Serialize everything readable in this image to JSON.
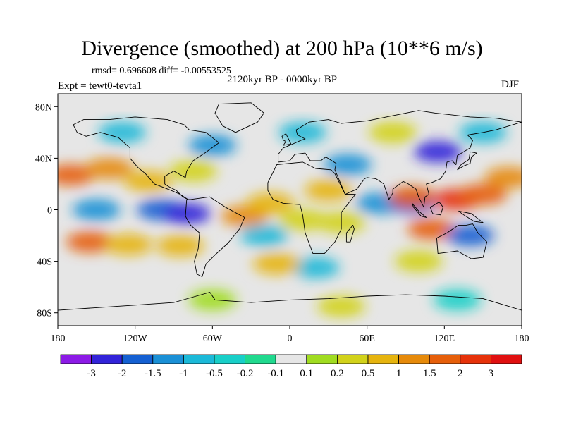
{
  "header": {
    "title": "Divergence (smoothed) at 200 hPa (10**6 m/s)",
    "stats": "rmsd= 0.696608 diff= -0.00553525",
    "period": "2120kyr BP - 0000kyr BP",
    "experiment": "Expt = tewt0-tevta1",
    "season": "DJF"
  },
  "map": {
    "y_ticks": [
      {
        "value": 80,
        "label": "80N"
      },
      {
        "value": 40,
        "label": "40N"
      },
      {
        "value": 0,
        "label": "0"
      },
      {
        "value": -40,
        "label": "40S"
      },
      {
        "value": -80,
        "label": "80S"
      }
    ],
    "x_ticks": [
      {
        "value": -180,
        "label": "180"
      },
      {
        "value": -120,
        "label": "120W"
      },
      {
        "value": -60,
        "label": "60W"
      },
      {
        "value": 0,
        "label": "0"
      },
      {
        "value": 60,
        "label": "60E"
      },
      {
        "value": 120,
        "label": "120E"
      },
      {
        "value": 180,
        "label": "180"
      }
    ],
    "lon_range": [
      -180,
      180
    ],
    "lat_range": [
      -90,
      90
    ],
    "background_color": "#e6e6e6"
  },
  "colorbar": {
    "colors": [
      "#8c1ae6",
      "#3223d9",
      "#1460d2",
      "#1a90d6",
      "#1bb9d8",
      "#18cfc8",
      "#20d98e",
      "#e6e6e6",
      "#a0dc20",
      "#d2d21a",
      "#e6b40e",
      "#e68a0a",
      "#e65f0a",
      "#e6320a",
      "#e01010"
    ],
    "labels": [
      "-3",
      "-2",
      "-1.5",
      "-1",
      "-0.5",
      "-0.2",
      "-0.1",
      "0.1",
      "0.2",
      "0.5",
      "1",
      "1.5",
      "2",
      "3"
    ]
  },
  "field_blobs": [
    {
      "lon": -170,
      "lat": 27,
      "level": 12
    },
    {
      "lon": -140,
      "lat": 32,
      "level": 11
    },
    {
      "lon": -110,
      "lat": 22,
      "level": 10
    },
    {
      "lon": -75,
      "lat": 30,
      "level": 9
    },
    {
      "lon": -150,
      "lat": 0,
      "level": 3
    },
    {
      "lon": -100,
      "lat": 0,
      "level": 2
    },
    {
      "lon": -80,
      "lat": -3,
      "level": 1
    },
    {
      "lon": -155,
      "lat": -25,
      "level": 12
    },
    {
      "lon": -125,
      "lat": -27,
      "level": 10
    },
    {
      "lon": -85,
      "lat": -28,
      "level": 10
    },
    {
      "lon": -35,
      "lat": -5,
      "level": 11
    },
    {
      "lon": -15,
      "lat": 5,
      "level": 10
    },
    {
      "lon": -20,
      "lat": -20,
      "level": 4
    },
    {
      "lon": 10,
      "lat": -8,
      "level": 9
    },
    {
      "lon": 30,
      "lat": 15,
      "level": 10
    },
    {
      "lon": 45,
      "lat": 35,
      "level": 3
    },
    {
      "lon": 40,
      "lat": -10,
      "level": 9
    },
    {
      "lon": 70,
      "lat": 5,
      "level": 3
    },
    {
      "lon": 95,
      "lat": 5,
      "level": 2
    },
    {
      "lon": 115,
      "lat": 45,
      "level": 1
    },
    {
      "lon": 95,
      "lat": 10,
      "level": 12
    },
    {
      "lon": 130,
      "lat": 8,
      "level": 13
    },
    {
      "lon": 150,
      "lat": 12,
      "level": 12
    },
    {
      "lon": 110,
      "lat": -15,
      "level": 12
    },
    {
      "lon": 140,
      "lat": -20,
      "level": 2
    },
    {
      "lon": 170,
      "lat": 25,
      "level": 11
    },
    {
      "lon": -60,
      "lat": 50,
      "level": 3
    },
    {
      "lon": -130,
      "lat": 60,
      "level": 4
    },
    {
      "lon": 10,
      "lat": 60,
      "level": 4
    },
    {
      "lon": 80,
      "lat": 60,
      "level": 9
    },
    {
      "lon": 150,
      "lat": 60,
      "level": 4
    },
    {
      "lon": 20,
      "lat": -45,
      "level": 4
    },
    {
      "lon": 100,
      "lat": -40,
      "level": 9
    },
    {
      "lon": -10,
      "lat": -42,
      "level": 10
    },
    {
      "lon": -60,
      "lat": -70,
      "level": 8
    },
    {
      "lon": 130,
      "lat": -70,
      "level": 5
    },
    {
      "lon": 40,
      "lat": -75,
      "level": 9
    }
  ],
  "coastlines": [
    {
      "name": "north-america",
      "points": [
        [
          -168,
          66
        ],
        [
          -160,
          70
        ],
        [
          -140,
          70
        ],
        [
          -120,
          72
        ],
        [
          -95,
          70
        ],
        [
          -82,
          66
        ],
        [
          -78,
          62
        ],
        [
          -65,
          60
        ],
        [
          -55,
          52
        ],
        [
          -66,
          44
        ],
        [
          -75,
          38
        ],
        [
          -80,
          30
        ],
        [
          -81,
          25
        ],
        [
          -90,
          30
        ],
        [
          -97,
          26
        ],
        [
          -97,
          20
        ],
        [
          -94,
          18
        ],
        [
          -88,
          15
        ],
        [
          -83,
          10
        ],
        [
          -79,
          8
        ],
        [
          -85,
          12
        ],
        [
          -92,
          15
        ],
        [
          -105,
          20
        ],
        [
          -112,
          28
        ],
        [
          -118,
          33
        ],
        [
          -124,
          40
        ],
        [
          -124,
          48
        ],
        [
          -133,
          56
        ],
        [
          -147,
          60
        ],
        [
          -158,
          57
        ],
        [
          -165,
          60
        ],
        [
          -168,
          66
        ]
      ]
    },
    {
      "name": "greenland",
      "points": [
        [
          -55,
          82
        ],
        [
          -30,
          83
        ],
        [
          -20,
          75
        ],
        [
          -25,
          68
        ],
        [
          -42,
          60
        ],
        [
          -52,
          65
        ],
        [
          -58,
          75
        ],
        [
          -55,
          82
        ]
      ]
    },
    {
      "name": "south-america",
      "points": [
        [
          -80,
          8
        ],
        [
          -77,
          8
        ],
        [
          -62,
          10
        ],
        [
          -50,
          2
        ],
        [
          -35,
          -6
        ],
        [
          -39,
          -15
        ],
        [
          -48,
          -26
        ],
        [
          -58,
          -35
        ],
        [
          -65,
          -42
        ],
        [
          -68,
          -52
        ],
        [
          -72,
          -50
        ],
        [
          -74,
          -40
        ],
        [
          -71,
          -30
        ],
        [
          -70,
          -18
        ],
        [
          -77,
          -12
        ],
        [
          -81,
          -5
        ],
        [
          -80,
          8
        ]
      ]
    },
    {
      "name": "africa",
      "points": [
        [
          -17,
          21
        ],
        [
          -10,
          35
        ],
        [
          10,
          37
        ],
        [
          20,
          32
        ],
        [
          32,
          31
        ],
        [
          35,
          28
        ],
        [
          43,
          12
        ],
        [
          51,
          12
        ],
        [
          40,
          -2
        ],
        [
          40,
          -15
        ],
        [
          35,
          -25
        ],
        [
          27,
          -34
        ],
        [
          18,
          -34
        ],
        [
          12,
          -18
        ],
        [
          10,
          -4
        ],
        [
          8,
          4
        ],
        [
          -5,
          5
        ],
        [
          -13,
          8
        ],
        [
          -17,
          15
        ],
        [
          -17,
          21
        ]
      ]
    },
    {
      "name": "eurasia",
      "points": [
        [
          -9,
          43
        ],
        [
          -9,
          37
        ],
        [
          0,
          38
        ],
        [
          4,
          43
        ],
        [
          12,
          44
        ],
        [
          16,
          38
        ],
        [
          24,
          38
        ],
        [
          28,
          41
        ],
        [
          36,
          36
        ],
        [
          35,
          31
        ],
        [
          43,
          12
        ],
        [
          52,
          16
        ],
        [
          58,
          24
        ],
        [
          60,
          25
        ],
        [
          67,
          24
        ],
        [
          73,
          20
        ],
        [
          77,
          8
        ],
        [
          80,
          13
        ],
        [
          80,
          16
        ],
        [
          88,
          22
        ],
        [
          92,
          20
        ],
        [
          98,
          16
        ],
        [
          100,
          10
        ],
        [
          104,
          2
        ],
        [
          105,
          10
        ],
        [
          108,
          12
        ],
        [
          106,
          20
        ],
        [
          110,
          21
        ],
        [
          117,
          24
        ],
        [
          121,
          30
        ],
        [
          122,
          37
        ],
        [
          126,
          38
        ],
        [
          129,
          35
        ],
        [
          130,
          42
        ],
        [
          140,
          48
        ],
        [
          142,
          54
        ],
        [
          138,
          58
        ],
        [
          150,
          60
        ],
        [
          160,
          62
        ],
        [
          170,
          65
        ],
        [
          180,
          68
        ],
        [
          160,
          71
        ],
        [
          140,
          72
        ],
        [
          113,
          75
        ],
        [
          100,
          77
        ],
        [
          80,
          73
        ],
        [
          60,
          69
        ],
        [
          40,
          67
        ],
        [
          30,
          70
        ],
        [
          15,
          68
        ],
        [
          5,
          62
        ],
        [
          6,
          58
        ],
        [
          12,
          55
        ],
        [
          9,
          54
        ],
        [
          0,
          50
        ],
        [
          -5,
          48
        ],
        [
          -9,
          43
        ]
      ]
    },
    {
      "name": "australia",
      "points": [
        [
          114,
          -22
        ],
        [
          122,
          -18
        ],
        [
          131,
          -12
        ],
        [
          137,
          -12
        ],
        [
          142,
          -11
        ],
        [
          146,
          -18
        ],
        [
          153,
          -25
        ],
        [
          150,
          -37
        ],
        [
          141,
          -38
        ],
        [
          130,
          -32
        ],
        [
          115,
          -34
        ],
        [
          114,
          -22
        ]
      ]
    },
    {
      "name": "borneo",
      "points": [
        [
          109,
          2
        ],
        [
          111,
          -3
        ],
        [
          117,
          -4
        ],
        [
          119,
          2
        ],
        [
          116,
          6
        ],
        [
          111,
          3
        ],
        [
          109,
          2
        ]
      ]
    },
    {
      "name": "sumatra",
      "points": [
        [
          95,
          5
        ],
        [
          100,
          -1
        ],
        [
          106,
          -6
        ],
        [
          102,
          -5
        ],
        [
          96,
          2
        ],
        [
          95,
          5
        ]
      ]
    },
    {
      "name": "new-guinea",
      "points": [
        [
          131,
          -1
        ],
        [
          141,
          -3
        ],
        [
          150,
          -10
        ],
        [
          143,
          -9
        ],
        [
          135,
          -4
        ],
        [
          131,
          -1
        ]
      ]
    },
    {
      "name": "japan",
      "points": [
        [
          130,
          31
        ],
        [
          135,
          34
        ],
        [
          140,
          36
        ],
        [
          141,
          41
        ],
        [
          145,
          44
        ],
        [
          140,
          45
        ],
        [
          139,
          39
        ],
        [
          133,
          35
        ],
        [
          130,
          31
        ]
      ]
    },
    {
      "name": "uk",
      "points": [
        [
          -5,
          50
        ],
        [
          1,
          51
        ],
        [
          -1,
          55
        ],
        [
          -3,
          59
        ],
        [
          -6,
          57
        ],
        [
          -5,
          54
        ],
        [
          -3,
          53
        ],
        [
          -5,
          50
        ]
      ]
    },
    {
      "name": "madagascar",
      "points": [
        [
          44,
          -25
        ],
        [
          47,
          -25
        ],
        [
          50,
          -15
        ],
        [
          49,
          -12
        ],
        [
          44,
          -18
        ],
        [
          44,
          -25
        ]
      ]
    },
    {
      "name": "antarctica",
      "points": [
        [
          -180,
          -78
        ],
        [
          -150,
          -76
        ],
        [
          -120,
          -74
        ],
        [
          -90,
          -72
        ],
        [
          -62,
          -64
        ],
        [
          -58,
          -70
        ],
        [
          -30,
          -72
        ],
        [
          0,
          -70
        ],
        [
          30,
          -69
        ],
        [
          60,
          -67
        ],
        [
          90,
          -66
        ],
        [
          120,
          -67
        ],
        [
          150,
          -69
        ],
        [
          180,
          -78
        ]
      ]
    }
  ]
}
